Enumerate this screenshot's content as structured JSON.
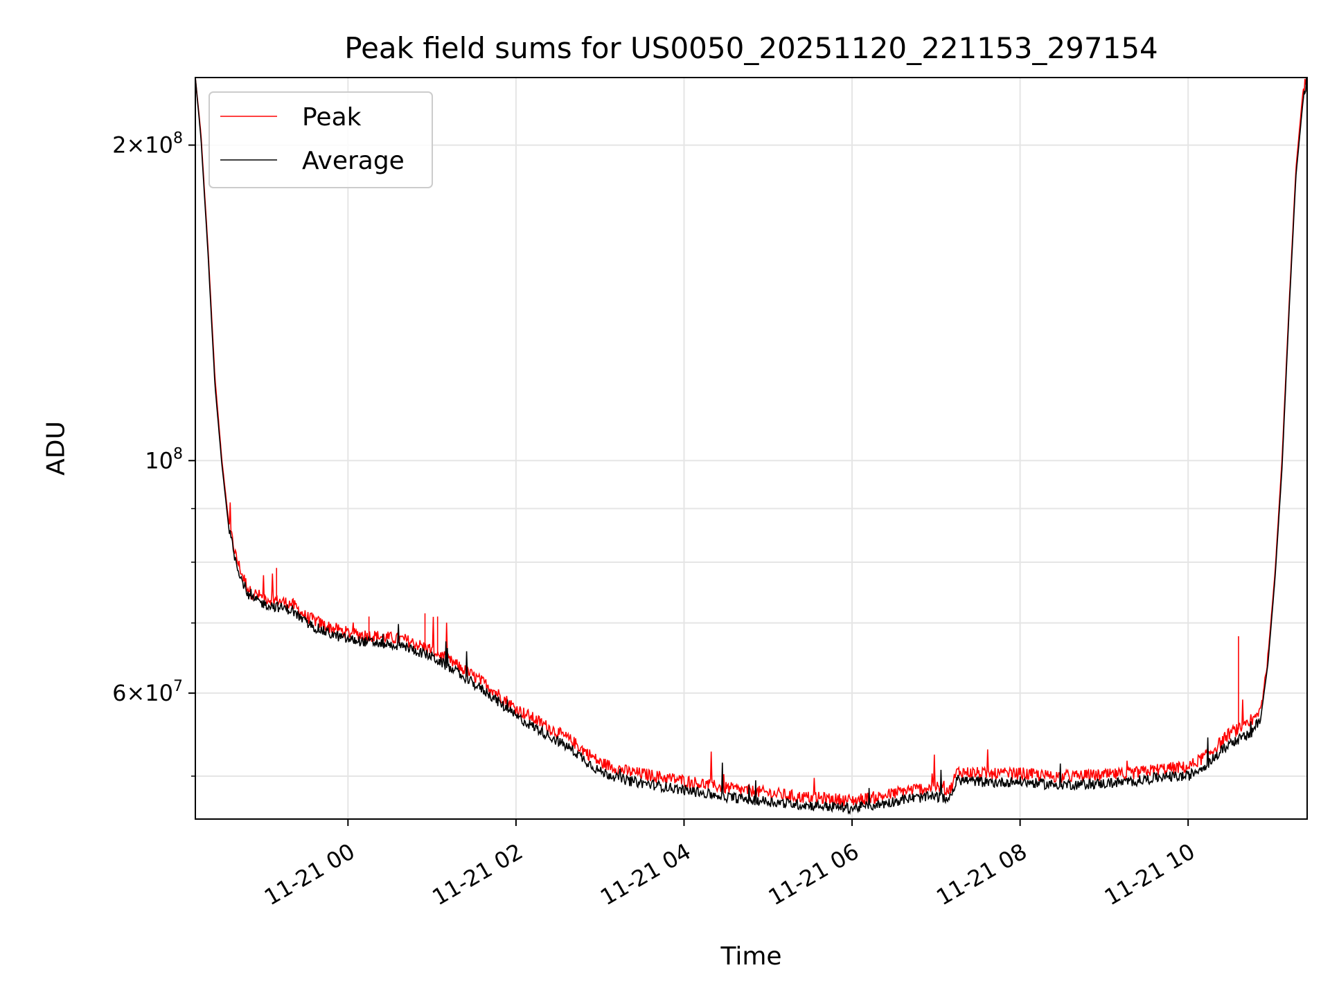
{
  "chart_data": {
    "type": "line",
    "title": "Peak field sums for US0050_20251120_221153_297154",
    "xlabel": "Time",
    "ylabel": "ADU",
    "x_type": "datetime",
    "xlim": [
      "2025-11-20T22:11:00",
      "2025-11-21T11:25:00"
    ],
    "y_scale": "log",
    "ylim": [
      45500000,
      232000000
    ],
    "grid": true,
    "legend_position": "upper-left",
    "x_ticks": [
      {
        "value": "2025-11-21T00:00:00",
        "label": "11-21 00"
      },
      {
        "value": "2025-11-21T02:00:00",
        "label": "11-21 02"
      },
      {
        "value": "2025-11-21T04:00:00",
        "label": "11-21 04"
      },
      {
        "value": "2025-11-21T06:00:00",
        "label": "11-21 06"
      },
      {
        "value": "2025-11-21T08:00:00",
        "label": "11-21 08"
      },
      {
        "value": "2025-11-21T10:00:00",
        "label": "11-21 10"
      }
    ],
    "y_major_ticks": [
      {
        "value": 60000000,
        "mantissa": "6",
        "base": "10",
        "exponent": "7"
      },
      {
        "value": 100000000,
        "mantissa": "",
        "base": "10",
        "exponent": "8"
      },
      {
        "value": 200000000,
        "mantissa": "2",
        "base": "10",
        "exponent": "8"
      }
    ],
    "y_minor_ticks": [
      50000000,
      70000000,
      80000000,
      90000000
    ],
    "series": [
      {
        "name": "Peak",
        "color": "#ff0000",
        "x": [
          "2025-11-20T22:11:00",
          "2025-11-20T22:15:00",
          "2025-11-20T22:20:00",
          "2025-11-20T22:25:00",
          "2025-11-20T22:30:00",
          "2025-11-20T22:35:00",
          "2025-11-20T22:40:00",
          "2025-11-20T22:45:00",
          "2025-11-20T22:50:00",
          "2025-11-20T23:00:00",
          "2025-11-20T23:10:00",
          "2025-11-20T23:20:00",
          "2025-11-20T23:30:00",
          "2025-11-20T23:45:00",
          "2025-11-21T00:00:00",
          "2025-11-21T00:20:00",
          "2025-11-21T00:40:00",
          "2025-11-21T01:00:00",
          "2025-11-21T01:20:00",
          "2025-11-21T01:40:00",
          "2025-11-21T02:00:00",
          "2025-11-21T02:20:00",
          "2025-11-21T02:40:00",
          "2025-11-21T03:00:00",
          "2025-11-21T03:20:00",
          "2025-11-21T03:40:00",
          "2025-11-21T04:00:00",
          "2025-11-21T04:20:00",
          "2025-11-21T04:40:00",
          "2025-11-21T05:00:00",
          "2025-11-21T05:20:00",
          "2025-11-21T05:40:00",
          "2025-11-21T06:00:00",
          "2025-11-21T06:20:00",
          "2025-11-21T06:40:00",
          "2025-11-21T07:00:00",
          "2025-11-21T07:10:00",
          "2025-11-21T07:15:00",
          "2025-11-21T07:40:00",
          "2025-11-21T08:00:00",
          "2025-11-21T08:20:00",
          "2025-11-21T08:40:00",
          "2025-11-21T09:00:00",
          "2025-11-21T09:20:00",
          "2025-11-21T09:40:00",
          "2025-11-21T10:00:00",
          "2025-11-21T10:15:00",
          "2025-11-21T10:30:00",
          "2025-11-21T10:45:00",
          "2025-11-21T10:52:00",
          "2025-11-21T10:57:00",
          "2025-11-21T11:02:00",
          "2025-11-21T11:07:00",
          "2025-11-21T11:12:00",
          "2025-11-21T11:17:00",
          "2025-11-21T11:22:00",
          "2025-11-21T11:25:00"
        ],
        "y": [
          232000000,
          205000000,
          160000000,
          120000000,
          100000000,
          87000000,
          81000000,
          77500000,
          75000000,
          74000000,
          73500000,
          73000000,
          71000000,
          69500000,
          68500000,
          68000000,
          67500000,
          66000000,
          63500000,
          61000000,
          58000000,
          56000000,
          54000000,
          51500000,
          50500000,
          50000000,
          49500000,
          49000000,
          48500000,
          48200000,
          47800000,
          47600000,
          47400000,
          47800000,
          48500000,
          48800000,
          48500000,
          50500000,
          50200000,
          50300000,
          50000000,
          50000000,
          50100000,
          50300000,
          50800000,
          51000000,
          52500000,
          55000000,
          56000000,
          58000000,
          65000000,
          78000000,
          100000000,
          140000000,
          190000000,
          225000000,
          232000000
        ]
      },
      {
        "name": "Average",
        "color": "#000000",
        "x": [
          "2025-11-20T22:11:00",
          "2025-11-20T22:15:00",
          "2025-11-20T22:20:00",
          "2025-11-20T22:25:00",
          "2025-11-20T22:30:00",
          "2025-11-20T22:35:00",
          "2025-11-20T22:40:00",
          "2025-11-20T22:45:00",
          "2025-11-20T22:50:00",
          "2025-11-20T23:00:00",
          "2025-11-20T23:10:00",
          "2025-11-20T23:20:00",
          "2025-11-20T23:30:00",
          "2025-11-20T23:45:00",
          "2025-11-21T00:00:00",
          "2025-11-21T00:20:00",
          "2025-11-21T00:40:00",
          "2025-11-21T01:00:00",
          "2025-11-21T01:20:00",
          "2025-11-21T01:40:00",
          "2025-11-21T02:00:00",
          "2025-11-21T02:20:00",
          "2025-11-21T02:40:00",
          "2025-11-21T03:00:00",
          "2025-11-21T03:20:00",
          "2025-11-21T03:40:00",
          "2025-11-21T04:00:00",
          "2025-11-21T04:20:00",
          "2025-11-21T04:40:00",
          "2025-11-21T05:00:00",
          "2025-11-21T05:20:00",
          "2025-11-21T05:40:00",
          "2025-11-21T06:00:00",
          "2025-11-21T06:20:00",
          "2025-11-21T06:40:00",
          "2025-11-21T07:00:00",
          "2025-11-21T07:10:00",
          "2025-11-21T07:15:00",
          "2025-11-21T07:40:00",
          "2025-11-21T08:00:00",
          "2025-11-21T08:20:00",
          "2025-11-21T08:40:00",
          "2025-11-21T09:00:00",
          "2025-11-21T09:20:00",
          "2025-11-21T09:40:00",
          "2025-11-21T10:00:00",
          "2025-11-21T10:15:00",
          "2025-11-21T10:30:00",
          "2025-11-21T10:45:00",
          "2025-11-21T10:52:00",
          "2025-11-21T10:57:00",
          "2025-11-21T11:02:00",
          "2025-11-21T11:07:00",
          "2025-11-21T11:12:00",
          "2025-11-21T11:17:00",
          "2025-11-21T11:22:00",
          "2025-11-21T11:25:00"
        ],
        "y": [
          232000000,
          203000000,
          158000000,
          118000000,
          99000000,
          86000000,
          80000000,
          76500000,
          74000000,
          73000000,
          72500000,
          72000000,
          70000000,
          68500000,
          67500000,
          67000000,
          66500000,
          65000000,
          62500000,
          60000000,
          57000000,
          55000000,
          53000000,
          50500000,
          49500000,
          49000000,
          48500000,
          48000000,
          47600000,
          47300000,
          47000000,
          46800000,
          46600000,
          47000000,
          47600000,
          47800000,
          47600000,
          49600000,
          49300000,
          49400000,
          49100000,
          49100000,
          49200000,
          49400000,
          49900000,
          50000000,
          51500000,
          53800000,
          54800000,
          57000000,
          64000000,
          77000000,
          98000000,
          138000000,
          187000000,
          220000000,
          232000000
        ]
      }
    ],
    "annotations": [
      {
        "series": "Peak",
        "x": "2025-11-20T23:09:00",
        "y": 79000000
      },
      {
        "series": "Peak",
        "x": "2025-11-21T00:15:00",
        "y": 71000000
      },
      {
        "series": "Peak",
        "x": "2025-11-21T00:55:00",
        "y": 71500000
      },
      {
        "series": "Peak",
        "x": "2025-11-21T01:04:00",
        "y": 71000000
      },
      {
        "series": "Peak",
        "x": "2025-11-21T10:36:00",
        "y": 68000000
      }
    ]
  }
}
